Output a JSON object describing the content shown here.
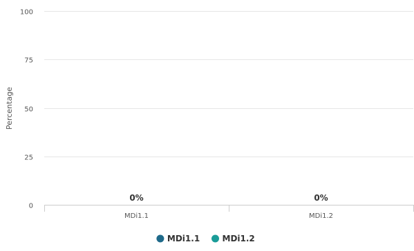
{
  "chart_data": {
    "type": "bar",
    "categories": [
      "MDi1.1",
      "MDi1.2"
    ],
    "series": [
      {
        "name": "MDi1.1",
        "values": [
          0,
          null
        ],
        "color": "#1f6a8a"
      },
      {
        "name": "MDi1.2",
        "values": [
          null,
          0
        ],
        "color": "#1a9c98"
      }
    ],
    "data_labels": [
      "0%",
      "0%"
    ],
    "ylabel": "Percentage",
    "xlabel": "",
    "ylim": [
      0,
      100
    ],
    "yticks": [
      0,
      25,
      50,
      75,
      100
    ],
    "grid": true,
    "legend": "bottom-center"
  }
}
